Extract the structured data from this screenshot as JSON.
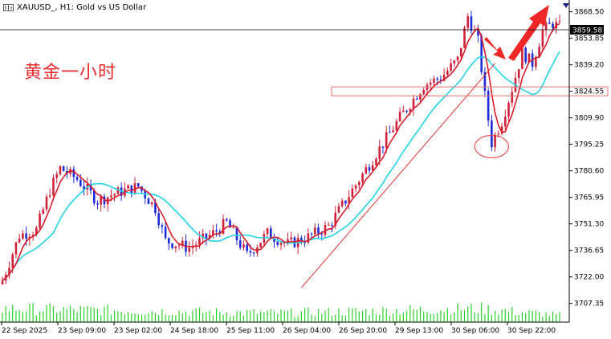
{
  "header": {
    "symbol_text": "XAUUSD_, H1:  Gold vs US Dollar"
  },
  "annotation": {
    "text": "黄金一小时"
  },
  "colors": {
    "bull": "#d0203a",
    "bear": "#1f2bd8",
    "ma_fast": "#d81c2b",
    "ma_slow": "#23d3e6",
    "volume": "#2ad02a",
    "trend": "#e02020",
    "arrow": "#ef2727"
  },
  "chart_data": {
    "type": "candlestick",
    "title": "XAUUSD_, H1:  Gold vs US Dollar",
    "current_price": "3859.58",
    "ylim": [
      3697,
      3875
    ],
    "y_ticks": [
      "3868.50",
      "3853.85",
      "3839.20",
      "3824.55",
      "3809.90",
      "3795.25",
      "3780.60",
      "3765.95",
      "3751.30",
      "3736.65",
      "3722.00",
      "3707.35"
    ],
    "x_ticks": [
      "22 Sep 2025",
      "23 Sep 09:00",
      "23 Sep 02:00",
      "24 Sep 18:00",
      "25 Sep 11:00",
      "26 Sep 04:00",
      "26 Sep 20:00",
      "29 Sep 13:00",
      "30 Sep 06:00",
      "30 Sep 22:00"
    ],
    "grid": false,
    "waypoints": [
      [
        0,
        3720
      ],
      [
        5,
        3745
      ],
      [
        10,
        3748
      ],
      [
        14,
        3770
      ],
      [
        17,
        3782
      ],
      [
        22,
        3776
      ],
      [
        28,
        3764
      ],
      [
        33,
        3768
      ],
      [
        40,
        3772
      ],
      [
        45,
        3760
      ],
      [
        48,
        3742
      ],
      [
        55,
        3738
      ],
      [
        62,
        3746
      ],
      [
        66,
        3752
      ],
      [
        72,
        3734
      ],
      [
        78,
        3746
      ],
      [
        84,
        3740
      ],
      [
        90,
        3744
      ],
      [
        96,
        3750
      ],
      [
        103,
        3770
      ],
      [
        110,
        3790
      ],
      [
        117,
        3810
      ],
      [
        124,
        3828
      ],
      [
        129,
        3832
      ],
      [
        134,
        3842
      ],
      [
        137,
        3866
      ],
      [
        140,
        3852
      ],
      [
        142,
        3822
      ],
      [
        144,
        3796
      ],
      [
        147,
        3808
      ],
      [
        150,
        3826
      ],
      [
        153,
        3846
      ],
      [
        156,
        3840
      ],
      [
        159,
        3858
      ],
      [
        162,
        3862
      ],
      [
        164,
        3860
      ]
    ],
    "volume_profile": [
      [
        0,
        18
      ],
      [
        40,
        15
      ],
      [
        80,
        12
      ],
      [
        100,
        14
      ],
      [
        120,
        16
      ],
      [
        140,
        18
      ],
      [
        164,
        9
      ]
    ],
    "red_circle_center": [
      144,
      3794
    ],
    "support_box_range": [
      3822,
      3827
    ],
    "trendline": [
      [
        88,
        3716
      ],
      [
        145,
        3840
      ]
    ]
  }
}
